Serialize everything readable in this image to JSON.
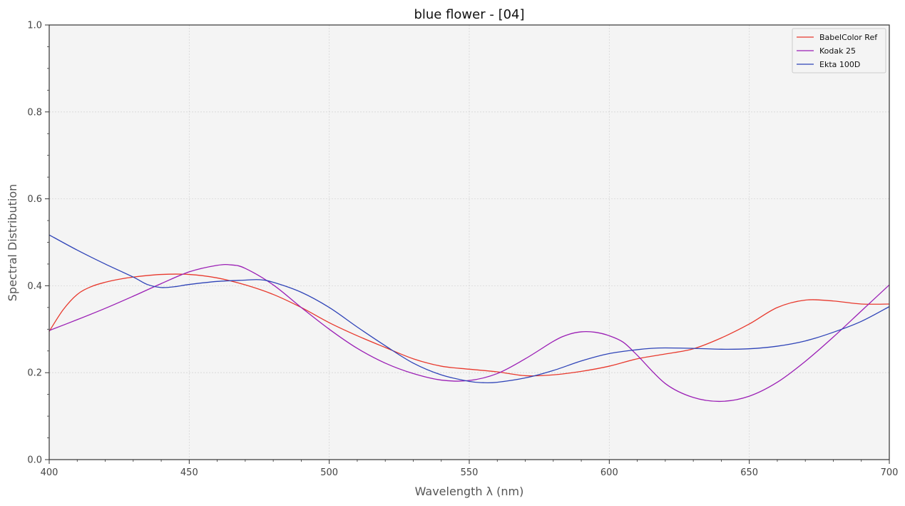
{
  "chart_data": {
    "type": "line",
    "title": "blue flower - [04]",
    "xlabel": "Wavelength λ (nm)",
    "ylabel": "Spectral Distribution",
    "xlim": [
      400,
      700
    ],
    "ylim": [
      0.0,
      1.0
    ],
    "xticks": [
      "400",
      "450",
      "500",
      "550",
      "600",
      "650",
      "700"
    ],
    "yticks": [
      "0.0",
      "0.2",
      "0.4",
      "0.6",
      "0.8",
      "1.0"
    ],
    "grid": true,
    "legend_position": "top-right",
    "series": [
      {
        "name": "BabelColor Ref",
        "color": "#e8392d",
        "x": [
          400,
          405,
          410,
          415,
          420,
          425,
          430,
          440,
          450,
          460,
          470,
          480,
          490,
          500,
          510,
          520,
          530,
          540,
          550,
          560,
          570,
          580,
          590,
          600,
          610,
          620,
          630,
          640,
          650,
          660,
          670,
          680,
          690,
          700
        ],
        "y": [
          0.295,
          0.345,
          0.38,
          0.398,
          0.408,
          0.415,
          0.42,
          0.426,
          0.426,
          0.418,
          0.402,
          0.38,
          0.35,
          0.315,
          0.285,
          0.258,
          0.232,
          0.215,
          0.208,
          0.202,
          0.193,
          0.195,
          0.203,
          0.215,
          0.232,
          0.243,
          0.255,
          0.28,
          0.312,
          0.35,
          0.367,
          0.365,
          0.358,
          0.358
        ]
      },
      {
        "name": "Kodak 25",
        "color": "#9b1fb5",
        "x": [
          400,
          410,
          420,
          430,
          440,
          450,
          460,
          465,
          470,
          480,
          490,
          500,
          510,
          520,
          530,
          540,
          550,
          560,
          570,
          580,
          585,
          590,
          595,
          600,
          605,
          610,
          620,
          630,
          640,
          650,
          660,
          670,
          680,
          690,
          700
        ],
        "y": [
          0.297,
          0.322,
          0.348,
          0.376,
          0.405,
          0.432,
          0.447,
          0.448,
          0.44,
          0.402,
          0.35,
          0.3,
          0.256,
          0.222,
          0.198,
          0.183,
          0.182,
          0.198,
          0.232,
          0.272,
          0.287,
          0.294,
          0.293,
          0.285,
          0.27,
          0.24,
          0.175,
          0.143,
          0.134,
          0.146,
          0.178,
          0.226,
          0.282,
          0.342,
          0.402
        ]
      },
      {
        "name": "Ekta 100D",
        "color": "#2f44b8",
        "x": [
          400,
          410,
          420,
          430,
          435,
          440,
          445,
          450,
          460,
          470,
          475,
          480,
          490,
          500,
          510,
          520,
          530,
          540,
          550,
          555,
          560,
          570,
          580,
          590,
          600,
          610,
          615,
          620,
          630,
          640,
          650,
          660,
          670,
          680,
          690,
          700
        ],
        "y": [
          0.517,
          0.482,
          0.45,
          0.42,
          0.403,
          0.396,
          0.398,
          0.403,
          0.41,
          0.413,
          0.414,
          0.408,
          0.385,
          0.35,
          0.305,
          0.262,
          0.222,
          0.195,
          0.18,
          0.177,
          0.178,
          0.188,
          0.205,
          0.227,
          0.244,
          0.253,
          0.256,
          0.257,
          0.256,
          0.254,
          0.255,
          0.261,
          0.273,
          0.293,
          0.318,
          0.352
        ]
      }
    ]
  }
}
